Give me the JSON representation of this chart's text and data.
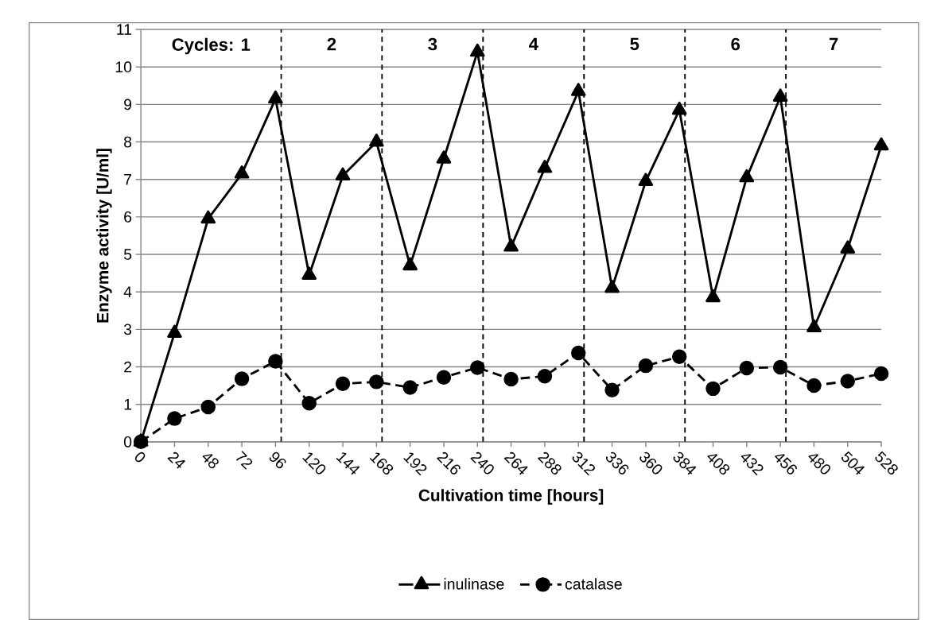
{
  "chart_data": {
    "type": "line",
    "xlabel": "Cultivation time [hours]",
    "ylabel": "Enzyme activity [U/ml]",
    "x": [
      0,
      24,
      48,
      72,
      96,
      120,
      144,
      168,
      192,
      216,
      240,
      264,
      288,
      312,
      336,
      360,
      384,
      408,
      432,
      456,
      480,
      504,
      528
    ],
    "series": [
      {
        "name": "inulinase",
        "color": "#000000",
        "marker": "triangle",
        "line_style": "solid",
        "values": [
          0,
          2.9,
          5.95,
          7.15,
          9.15,
          4.45,
          7.1,
          8.0,
          4.7,
          7.55,
          10.4,
          5.2,
          7.3,
          9.35,
          4.1,
          6.95,
          8.85,
          3.85,
          7.05,
          9.2,
          3.05,
          5.15,
          7.9
        ]
      },
      {
        "name": "catalase",
        "color": "#000000",
        "marker": "circle",
        "line_style": "dashed",
        "values": [
          0,
          0.62,
          0.93,
          1.68,
          2.15,
          1.03,
          1.55,
          1.6,
          1.45,
          1.72,
          1.98,
          1.67,
          1.75,
          2.37,
          1.38,
          2.03,
          2.27,
          1.42,
          1.97,
          1.99,
          1.5,
          1.62,
          1.82
        ]
      }
    ],
    "xlim": [
      0,
      528
    ],
    "xticks": [
      0,
      24,
      48,
      72,
      96,
      120,
      144,
      168,
      192,
      216,
      240,
      264,
      288,
      312,
      336,
      360,
      384,
      408,
      432,
      456,
      480,
      504,
      528
    ],
    "ylim": [
      0,
      11
    ],
    "yticks": [
      0,
      1,
      2,
      3,
      4,
      5,
      6,
      7,
      8,
      9,
      10,
      11
    ],
    "ref_lines": [
      {
        "axis": "x",
        "value": 100,
        "line_style": "dashed",
        "color": "#000000"
      },
      {
        "axis": "x",
        "value": 172,
        "line_style": "dashed",
        "color": "#000000"
      },
      {
        "axis": "x",
        "value": 244,
        "line_style": "dashed",
        "color": "#000000"
      },
      {
        "axis": "x",
        "value": 316,
        "line_style": "dashed",
        "color": "#000000"
      },
      {
        "axis": "x",
        "value": 388,
        "line_style": "dashed",
        "color": "#000000"
      },
      {
        "axis": "x",
        "value": 460,
        "line_style": "dashed",
        "color": "#000000"
      }
    ],
    "annotations": [
      "Cycles:  1",
      "2",
      "3",
      "4",
      "5",
      "6",
      "7"
    ],
    "grid": "y",
    "legend": "bottom"
  }
}
